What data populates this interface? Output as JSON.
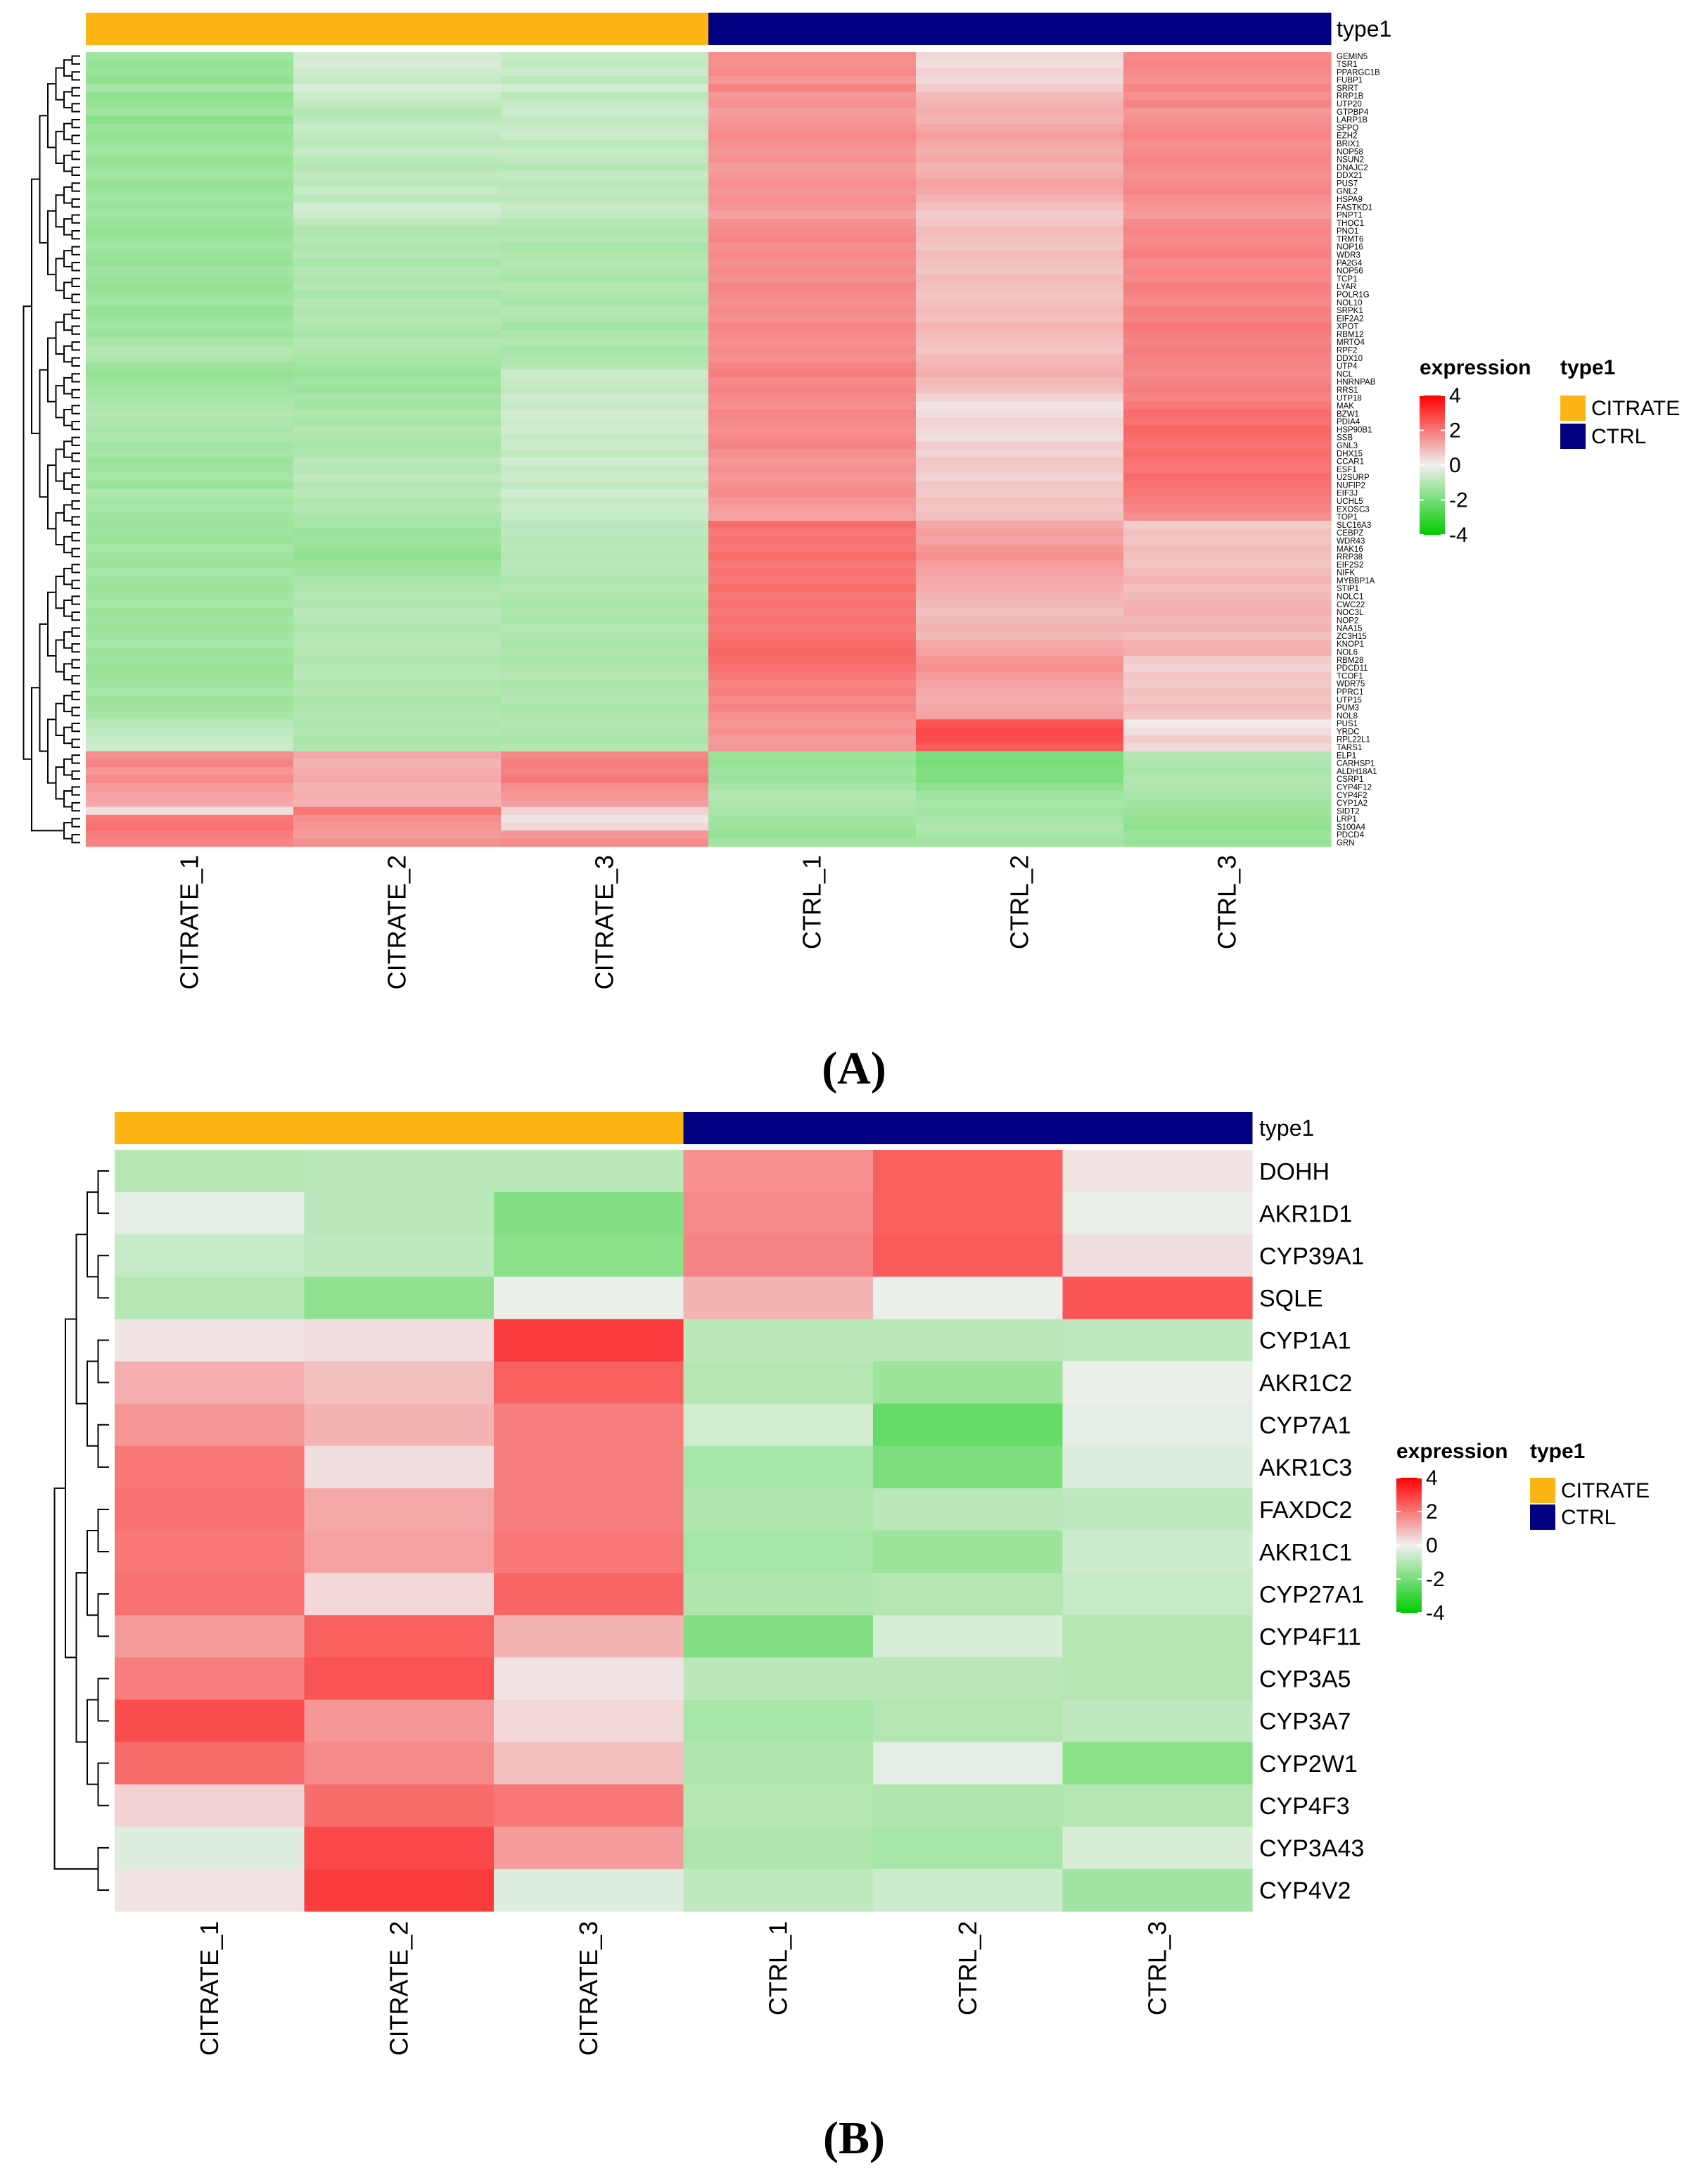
{
  "chart_data": [
    {
      "type": "heatmap",
      "panel_label": "(A)",
      "columns": [
        "CITRATE_1",
        "CITRATE_2",
        "CITRATE_3",
        "CTRL_1",
        "CTRL_2",
        "CTRL_3"
      ],
      "column_groups": [
        "CITRATE",
        "CITRATE",
        "CITRATE",
        "CTRL",
        "CTRL",
        "CTRL"
      ],
      "annotation_title": "type1",
      "legend": {
        "expression_title": "expression",
        "type_title": "type1",
        "scale_ticks": [
          4,
          2,
          0,
          -2,
          -4
        ],
        "scale_tick_labels": [
          "4",
          "2",
          "0",
          "-2",
          "-4"
        ],
        "groups": [
          {
            "name": "CITRATE",
            "color": "#FDB515"
          },
          {
            "name": "CTRL",
            "color": "#000080"
          }
        ]
      },
      "color_scale": {
        "min": -4,
        "mid": 0,
        "max": 4,
        "low": "#00CC00",
        "mid_color": "#F0F0F0",
        "high": "#FF0000"
      },
      "rows": [
        "GEMIN5",
        "TSR1",
        "PPARGC1B",
        "FUBP1",
        "SRRT",
        "RRP1B",
        "UTP20",
        "GTPBP4",
        "LARP1B",
        "SFPQ",
        "EZH2",
        "BRIX1",
        "NOP58",
        "NSUN2",
        "DNAJC2",
        "DDX21",
        "PUS7",
        "GNL2",
        "HSPA9",
        "FASTKD1",
        "PNPT1",
        "THOC1",
        "PNO1",
        "TRMT6",
        "NOP16",
        "WDR3",
        "PA2G4",
        "NOP56",
        "TCP1",
        "LYAR",
        "POLR1G",
        "NOL10",
        "SRPK1",
        "EIF2A2",
        "XPOT",
        "RBM12",
        "MRTO4",
        "RPF2",
        "DDX10",
        "UTP4",
        "NCL",
        "HNRNPAB",
        "RRS1",
        "UTP18",
        "MAK",
        "BZW1",
        "PDIA4",
        "HSP90B1",
        "SSB",
        "GNL3",
        "DHX15",
        "CCAR1",
        "ESF1",
        "U2SURP",
        "NUFIP2",
        "EIF3J",
        "UCHL5",
        "EXOSC3",
        "TOP1",
        "SLC16A3",
        "CEBPZ",
        "WDR43",
        "MAK16",
        "RRP38",
        "EIF2S2",
        "NIFK",
        "MYBBP1A",
        "STIP1",
        "NOLC1",
        "CWC22",
        "NOC3L",
        "NOP2",
        "NAA15",
        "ZC3H15",
        "KNOP1",
        "NOL6",
        "RBM28",
        "PDCD11",
        "TCOF1",
        "WDR75",
        "PPRC1",
        "UTP15",
        "PUM3",
        "NOL8",
        "PUS1",
        "YRDC",
        "RPL22L1",
        "TARS1",
        "ELP1",
        "CARHSP1",
        "ALDH18A1",
        "CSRP1",
        "CYP4F12",
        "CYP4F2",
        "CYP1A2",
        "SIDT2",
        "LRP1",
        "S100A4",
        "PDCD4",
        "GRN"
      ],
      "values": [
        [
          -1.3,
          -0.5,
          -0.7,
          1.6,
          0.4,
          1.7
        ],
        [
          -1.5,
          -0.4,
          -0.8,
          1.6,
          0.3,
          1.8
        ],
        [
          -1.4,
          -0.6,
          -0.6,
          1.7,
          0.5,
          1.7
        ],
        [
          -1.6,
          -0.7,
          -0.9,
          1.5,
          0.4,
          1.6
        ],
        [
          -1.2,
          -0.4,
          -0.5,
          1.8,
          0.6,
          1.8
        ],
        [
          -1.6,
          -0.6,
          -0.9,
          1.5,
          0.9,
          1.6
        ],
        [
          -1.5,
          -0.8,
          -0.7,
          1.6,
          1.0,
          1.8
        ],
        [
          -1.3,
          -1.0,
          -0.6,
          1.4,
          1.1,
          1.5
        ],
        [
          -1.7,
          -0.9,
          -0.8,
          1.5,
          1.0,
          1.6
        ],
        [
          -1.4,
          -0.7,
          -0.7,
          1.6,
          1.2,
          1.7
        ],
        [
          -1.5,
          -0.8,
          -0.6,
          1.7,
          1.4,
          1.8
        ],
        [
          -1.4,
          -0.9,
          -0.9,
          1.6,
          1.2,
          1.6
        ],
        [
          -1.3,
          -0.7,
          -0.7,
          1.5,
          1.1,
          1.7
        ],
        [
          -1.5,
          -0.9,
          -0.8,
          1.6,
          1.2,
          1.8
        ],
        [
          -1.4,
          -1.0,
          -1.0,
          1.4,
          1.0,
          1.7
        ],
        [
          -1.3,
          -0.8,
          -0.7,
          1.5,
          1.1,
          1.6
        ],
        [
          -1.5,
          -0.9,
          -0.9,
          1.6,
          1.3,
          1.7
        ],
        [
          -1.4,
          -0.7,
          -0.8,
          1.5,
          1.2,
          1.8
        ],
        [
          -1.3,
          -0.9,
          -0.9,
          1.6,
          1.0,
          1.6
        ],
        [
          -1.4,
          -0.5,
          -0.7,
          1.5,
          0.8,
          1.5
        ],
        [
          -1.3,
          -0.6,
          -0.8,
          1.3,
          0.6,
          1.4
        ],
        [
          -1.4,
          -0.9,
          -1.0,
          1.6,
          0.7,
          1.7
        ],
        [
          -1.5,
          -1.1,
          -1.1,
          1.7,
          0.9,
          1.8
        ],
        [
          -1.4,
          -1.0,
          -1.0,
          1.8,
          0.8,
          1.7
        ],
        [
          -1.3,
          -1.1,
          -1.2,
          1.6,
          0.7,
          1.8
        ],
        [
          -1.4,
          -1.0,
          -1.1,
          1.7,
          0.9,
          1.9
        ],
        [
          -1.5,
          -1.2,
          -1.0,
          1.6,
          0.8,
          1.7
        ],
        [
          -1.3,
          -1.0,
          -1.1,
          1.7,
          0.7,
          1.8
        ],
        [
          -1.4,
          -1.1,
          -1.2,
          1.6,
          0.9,
          1.7
        ],
        [
          -1.5,
          -1.0,
          -1.0,
          1.8,
          0.8,
          1.9
        ],
        [
          -1.4,
          -1.2,
          -1.1,
          1.7,
          0.7,
          1.8
        ],
        [
          -1.3,
          -1.0,
          -1.2,
          1.6,
          0.8,
          1.7
        ],
        [
          -1.5,
          -1.1,
          -1.0,
          1.7,
          0.9,
          1.9
        ],
        [
          -1.4,
          -1.0,
          -1.1,
          1.6,
          0.8,
          1.8
        ],
        [
          -1.3,
          -1.1,
          -1.3,
          1.8,
          1.0,
          2.0
        ],
        [
          -1.4,
          -1.2,
          -1.1,
          1.7,
          0.9,
          1.9
        ],
        [
          -1.2,
          -1.0,
          -1.0,
          1.6,
          0.8,
          1.8
        ],
        [
          -1.0,
          -1.1,
          -1.2,
          1.7,
          0.7,
          1.9
        ],
        [
          -1.1,
          -1.2,
          -1.1,
          1.6,
          0.9,
          1.8
        ],
        [
          -1.4,
          -1.3,
          -1.0,
          1.8,
          1.0,
          1.8
        ],
        [
          -1.5,
          -1.4,
          -0.6,
          1.9,
          1.1,
          1.7
        ],
        [
          -1.4,
          -1.3,
          -0.7,
          1.7,
          0.9,
          1.8
        ],
        [
          -1.3,
          -1.4,
          -0.8,
          1.8,
          0.8,
          1.9
        ],
        [
          -1.2,
          -1.2,
          -0.6,
          1.7,
          0.5,
          1.8
        ],
        [
          -1.1,
          -1.3,
          -0.7,
          1.6,
          0.2,
          2.0
        ],
        [
          -1.0,
          -1.1,
          -0.5,
          1.8,
          0.3,
          2.2
        ],
        [
          -1.1,
          -1.2,
          -0.6,
          1.7,
          0.5,
          2.1
        ],
        [
          -1.2,
          -1.0,
          -0.5,
          1.6,
          0.4,
          2.3
        ],
        [
          -1.1,
          -1.1,
          -0.7,
          1.7,
          0.3,
          2.2
        ],
        [
          -1.3,
          -1.2,
          -0.6,
          1.8,
          0.6,
          2.1
        ],
        [
          -1.2,
          -1.1,
          -0.8,
          1.6,
          0.5,
          2.2
        ],
        [
          -1.4,
          -0.9,
          -0.5,
          1.5,
          0.7,
          2.1
        ],
        [
          -1.3,
          -1.0,
          -0.7,
          1.6,
          0.6,
          2.0
        ],
        [
          -1.2,
          -0.8,
          -0.6,
          1.5,
          0.5,
          2.2
        ],
        [
          -1.4,
          -1.0,
          -0.8,
          1.6,
          0.7,
          2.1
        ],
        [
          -1.1,
          -0.9,
          -0.5,
          1.7,
          0.6,
          2.0
        ],
        [
          -1.3,
          -1.1,
          -0.7,
          1.5,
          0.8,
          1.9
        ],
        [
          -1.2,
          -1.0,
          -0.6,
          1.4,
          0.7,
          1.8
        ],
        [
          -1.3,
          -1.2,
          -0.7,
          1.3,
          0.8,
          1.6
        ],
        [
          -1.4,
          -1.2,
          -0.9,
          2.2,
          1.2,
          0.6
        ],
        [
          -1.3,
          -1.4,
          -0.8,
          2.0,
          1.4,
          0.8
        ],
        [
          -1.4,
          -1.3,
          -1.0,
          2.1,
          1.3,
          0.7
        ],
        [
          -1.2,
          -1.5,
          -0.9,
          2.0,
          1.5,
          0.9
        ],
        [
          -1.3,
          -1.6,
          -1.0,
          2.2,
          1.6,
          0.8
        ],
        [
          -1.4,
          -1.4,
          -0.9,
          2.0,
          1.4,
          0.7
        ],
        [
          -1.2,
          -1.3,
          -1.0,
          2.1,
          1.3,
          0.9
        ],
        [
          -1.3,
          -1.2,
          -1.1,
          2.0,
          1.2,
          1.0
        ],
        [
          -1.4,
          -1.1,
          -1.0,
          2.2,
          1.1,
          0.8
        ],
        [
          -1.3,
          -1.0,
          -1.1,
          2.0,
          1.0,
          0.9
        ],
        [
          -1.2,
          -1.1,
          -1.2,
          2.1,
          0.9,
          1.0
        ],
        [
          -1.4,
          -0.9,
          -1.1,
          2.0,
          0.8,
          1.1
        ],
        [
          -1.3,
          -1.0,
          -1.2,
          2.1,
          0.9,
          0.9
        ],
        [
          -1.4,
          -1.1,
          -1.0,
          2.0,
          1.0,
          1.0
        ],
        [
          -1.3,
          -1.0,
          -1.1,
          2.1,
          0.9,
          0.8
        ],
        [
          -1.2,
          -0.9,
          -1.2,
          2.2,
          1.2,
          1.0
        ],
        [
          -1.4,
          -1.0,
          -1.1,
          2.3,
          1.3,
          1.1
        ],
        [
          -1.3,
          -1.1,
          -1.2,
          2.2,
          1.5,
          0.6
        ],
        [
          -1.5,
          -1.0,
          -1.1,
          2.1,
          1.6,
          0.5
        ],
        [
          -1.4,
          -0.9,
          -1.0,
          2.0,
          1.4,
          0.7
        ],
        [
          -1.3,
          -1.1,
          -1.2,
          1.8,
          1.3,
          0.6
        ],
        [
          -1.2,
          -1.0,
          -1.1,
          1.9,
          1.2,
          0.8
        ],
        [
          -1.4,
          -1.2,
          -1.0,
          1.7,
          1.1,
          0.7
        ],
        [
          -1.3,
          -1.1,
          -1.2,
          1.8,
          1.2,
          0.9
        ],
        [
          -1.2,
          -1.0,
          -1.1,
          1.6,
          1.3,
          0.7
        ],
        [
          -0.9,
          -1.1,
          -1.0,
          1.5,
          2.6,
          0.1
        ],
        [
          -0.8,
          -1.0,
          -1.1,
          1.6,
          2.8,
          0.3
        ],
        [
          -0.7,
          -1.2,
          -1.2,
          1.4,
          2.7,
          0.6
        ],
        [
          -0.6,
          -1.1,
          -1.0,
          1.5,
          2.5,
          0.4
        ],
        [
          1.6,
          1.2,
          1.7,
          -1.4,
          -1.9,
          -1.0
        ],
        [
          1.8,
          1.0,
          1.9,
          -1.5,
          -2.0,
          -1.1
        ],
        [
          1.5,
          1.1,
          1.8,
          -1.3,
          -1.8,
          -1.2
        ],
        [
          1.7,
          1.2,
          2.0,
          -1.4,
          -1.9,
          -1.0
        ],
        [
          1.4,
          1.0,
          1.6,
          -1.2,
          -1.6,
          -1.1
        ],
        [
          1.3,
          1.1,
          1.5,
          -1.0,
          -1.3,
          -1.2
        ],
        [
          1.2,
          1.0,
          1.4,
          -1.1,
          -1.2,
          -1.3
        ],
        [
          0.3,
          2.0,
          0.5,
          -1.2,
          -1.3,
          -1.4
        ],
        [
          2.0,
          1.6,
          0.2,
          -1.3,
          -1.2,
          -1.5
        ],
        [
          2.1,
          1.5,
          0.4,
          -1.4,
          -1.1,
          -1.6
        ],
        [
          1.9,
          1.4,
          1.5,
          -1.5,
          -1.2,
          -1.4
        ],
        [
          1.8,
          1.6,
          1.7,
          -1.3,
          -1.3,
          -1.5
        ]
      ],
      "dendrogram": "row-clustered"
    },
    {
      "type": "heatmap",
      "panel_label": "(B)",
      "columns": [
        "CITRATE_1",
        "CITRATE_2",
        "CITRATE_3",
        "CTRL_1",
        "CTRL_2",
        "CTRL_3"
      ],
      "column_groups": [
        "CITRATE",
        "CITRATE",
        "CITRATE",
        "CTRL",
        "CTRL",
        "CTRL"
      ],
      "annotation_title": "type1",
      "legend": {
        "expression_title": "expression",
        "type_title": "type1",
        "scale_ticks": [
          4,
          2,
          0,
          -2,
          -4
        ],
        "scale_tick_labels": [
          "4",
          "2",
          "0",
          "-2",
          "-4"
        ],
        "groups": [
          {
            "name": "CITRATE",
            "color": "#FDB515"
          },
          {
            "name": "CTRL",
            "color": "#000080"
          }
        ]
      },
      "color_scale": {
        "min": -4,
        "mid": 0,
        "max": 4,
        "low": "#00CC00",
        "mid_color": "#F0F0F0",
        "high": "#FF0000"
      },
      "rows": [
        "DOHH",
        "AKR1D1",
        "CYP39A1",
        "SQLE",
        "CYP1A1",
        "AKR1C2",
        "CYP7A1",
        "AKR1C3",
        "FAXDC2",
        "AKR1C1",
        "CYP27A1",
        "CYP4F11",
        "CYP3A5",
        "CYP3A7",
        "CYP2W1",
        "CYP4F3",
        "CYP3A43",
        "CYP4V2"
      ],
      "values": [
        [
          -1.0,
          -0.9,
          -0.9,
          1.6,
          2.4,
          0.2
        ],
        [
          -0.2,
          -0.9,
          -1.8,
          1.7,
          2.4,
          -0.1
        ],
        [
          -0.7,
          -0.8,
          -1.7,
          1.8,
          2.5,
          0.3
        ],
        [
          -1.0,
          -1.6,
          -0.1,
          1.0,
          -0.1,
          2.6
        ],
        [
          0.2,
          0.3,
          3.0,
          -0.9,
          -0.9,
          -0.8
        ],
        [
          1.1,
          0.8,
          2.4,
          -1.0,
          -1.4,
          -0.1
        ],
        [
          1.5,
          1.0,
          1.9,
          -0.5,
          -2.3,
          -0.2
        ],
        [
          2.0,
          0.3,
          1.9,
          -1.2,
          -1.9,
          -0.3
        ],
        [
          2.1,
          1.2,
          1.9,
          -1.1,
          -0.9,
          -0.8
        ],
        [
          2.0,
          1.3,
          2.0,
          -1.2,
          -1.4,
          -0.6
        ],
        [
          2.1,
          0.4,
          2.3,
          -1.1,
          -1.0,
          -0.7
        ],
        [
          1.4,
          2.4,
          1.0,
          -1.8,
          -0.4,
          -1.0
        ],
        [
          1.9,
          2.6,
          0.2,
          -0.9,
          -0.9,
          -1.0
        ],
        [
          2.7,
          1.5,
          0.4,
          -1.2,
          -1.0,
          -0.8
        ],
        [
          2.2,
          1.7,
          0.8,
          -1.1,
          -0.2,
          -1.7
        ],
        [
          0.5,
          2.2,
          2.0,
          -1.0,
          -1.1,
          -1.0
        ],
        [
          -0.3,
          2.8,
          1.4,
          -1.1,
          -1.2,
          -0.4
        ],
        [
          0.2,
          3.0,
          -0.3,
          -0.8,
          -0.6,
          -1.3
        ]
      ],
      "dendrogram": "row-clustered"
    }
  ]
}
